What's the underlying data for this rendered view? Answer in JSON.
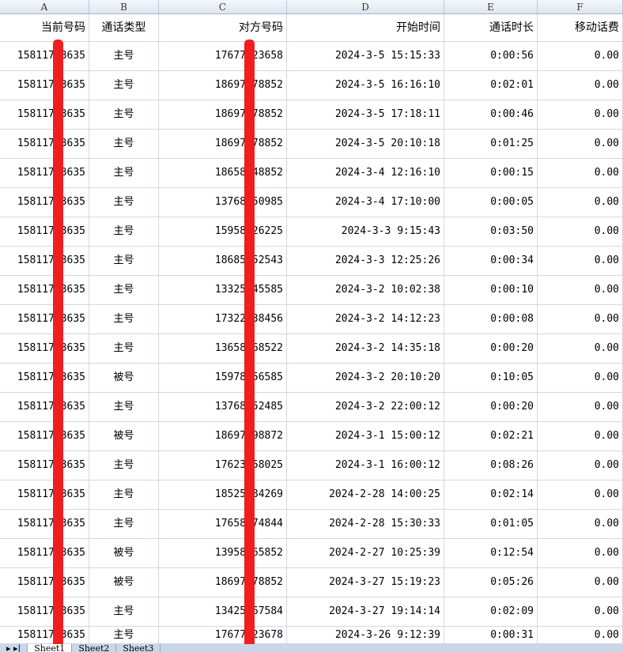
{
  "columns": [
    "A",
    "B",
    "C",
    "D",
    "E",
    "F"
  ],
  "headers": [
    "当前号码",
    "通话类型",
    "对方号码",
    "开始时间",
    "通话时长",
    "移动话费"
  ],
  "rows": [
    [
      "15811753635",
      "主号",
      "17677123658",
      "2024-3-5 15:15:33",
      "0:00:56",
      "0.00"
    ],
    [
      "15811753635",
      "主号",
      "18697378852",
      "2024-3-5 16:16:10",
      "0:02:01",
      "0.00"
    ],
    [
      "15811753635",
      "主号",
      "18697378852",
      "2024-3-5 17:18:11",
      "0:00:46",
      "0.00"
    ],
    [
      "15811753635",
      "主号",
      "18697378852",
      "2024-3-5 20:10:18",
      "0:01:25",
      "0.00"
    ],
    [
      "15811753635",
      "主号",
      "18658548852",
      "2024-3-4 12:16:10",
      "0:00:15",
      "0.00"
    ],
    [
      "15811753635",
      "主号",
      "13768250985",
      "2024-3-4 17:10:00",
      "0:00:05",
      "0.00"
    ],
    [
      "15811753635",
      "主号",
      "15958426225",
      "2024-3-3 9:15:43",
      "0:03:50",
      "0.00"
    ],
    [
      "15811753635",
      "主号",
      "18685552543",
      "2024-3-3 12:25:26",
      "0:00:34",
      "0.00"
    ],
    [
      "15811753635",
      "主号",
      "13325545585",
      "2024-3-2 10:02:38",
      "0:00:10",
      "0.00"
    ],
    [
      "15811753635",
      "主号",
      "17322538456",
      "2024-3-2 14:12:23",
      "0:00:08",
      "0.00"
    ],
    [
      "15811753635",
      "主号",
      "13658568522",
      "2024-3-2 14:35:18",
      "0:00:20",
      "0.00"
    ],
    [
      "15811753635",
      "被号",
      "15978156585",
      "2024-3-2 20:10:20",
      "0:10:05",
      "0.00"
    ],
    [
      "15811753635",
      "主号",
      "13768252485",
      "2024-3-2 22:00:12",
      "0:00:20",
      "0.00"
    ],
    [
      "15811753635",
      "被号",
      "18697598872",
      "2024-3-1 15:00:12",
      "0:02:21",
      "0.00"
    ],
    [
      "15811753635",
      "主号",
      "17623558025",
      "2024-3-1 16:00:12",
      "0:08:26",
      "0.00"
    ],
    [
      "15811753635",
      "主号",
      "18525584269",
      "2024-2-28 14:00:25",
      "0:02:14",
      "0.00"
    ],
    [
      "15811753635",
      "主号",
      "17658474844",
      "2024-2-28 15:30:33",
      "0:01:05",
      "0.00"
    ],
    [
      "15811753635",
      "被号",
      "13958265852",
      "2024-2-27 10:25:39",
      "0:12:54",
      "0.00"
    ],
    [
      "15811753635",
      "被号",
      "18697378852",
      "2024-3-27 15:19:23",
      "0:05:26",
      "0.00"
    ],
    [
      "15811753635",
      "主号",
      "13425567584",
      "2024-3-27 19:14:14",
      "0:02:09",
      "0.00"
    ],
    [
      "15811753635",
      "主号",
      "17677123678",
      "2024-3-26 9:12:39",
      "0:00:31",
      "0.00"
    ]
  ],
  "sheet_tabs": [
    "Sheet1",
    "Sheet2",
    "Sheet3"
  ],
  "colors": {
    "mask": "#f01e1e",
    "grid": "#d0d7e5"
  }
}
